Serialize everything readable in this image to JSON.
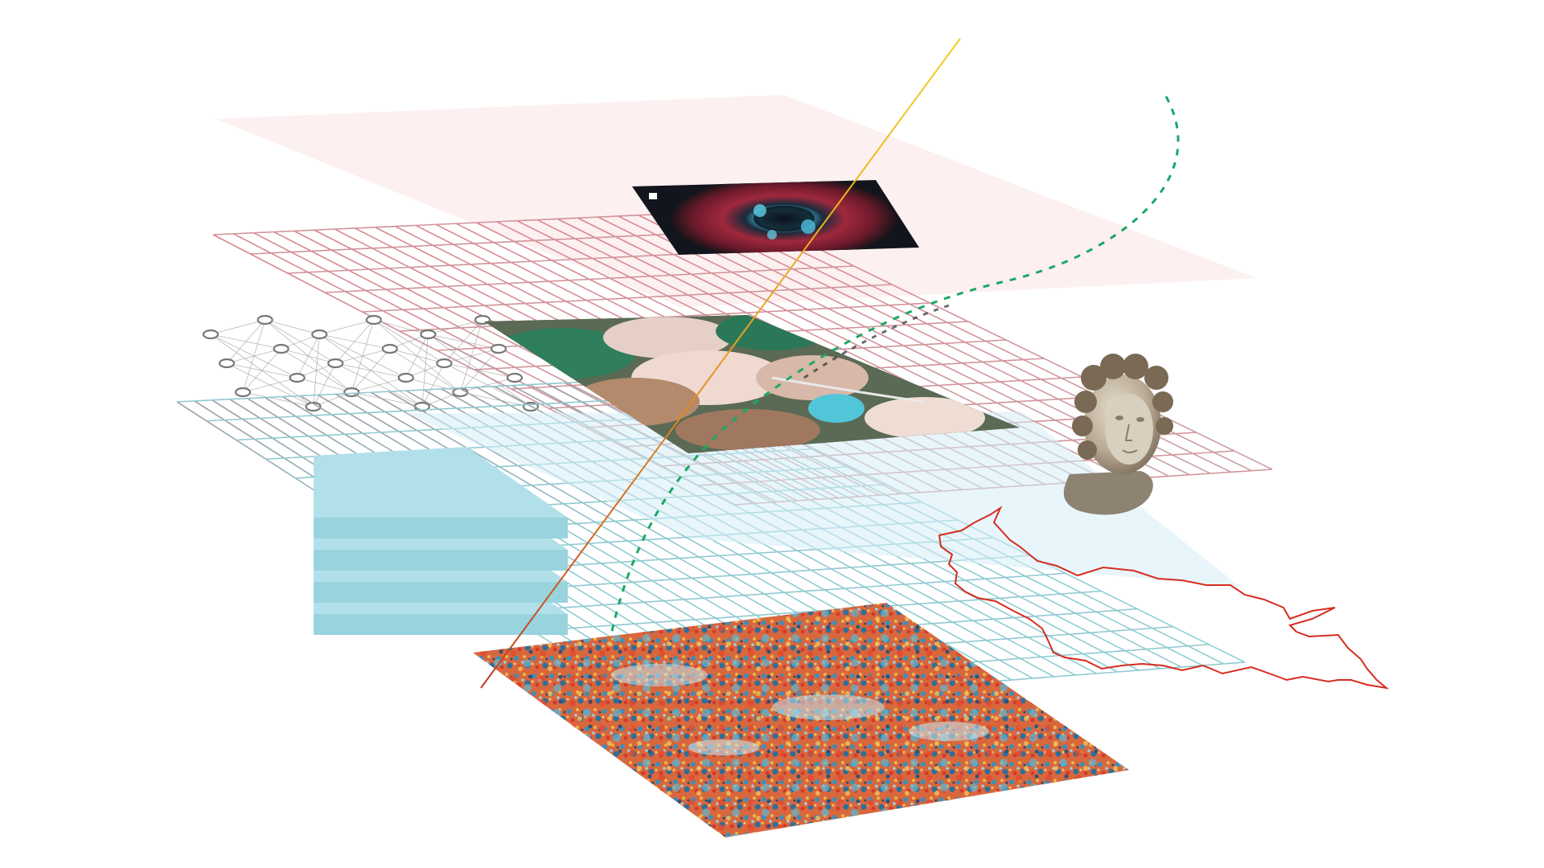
{
  "colors": {
    "background": "#ffffff",
    "top_plane": "#fdecec",
    "grid_red": "#d98a91",
    "grid_gray": "#a8a8b0",
    "grid_teal": "#8ccfd2",
    "translucent_plane": "#d8eef7",
    "stack_block": "#a8dce6",
    "yellow_line": "#e8c21c",
    "red_line": "#c2371f",
    "green_dash": "#1aa866",
    "dark_dash": "#2a2f3a",
    "border_outline": "#d62b1e",
    "neural_node": "#777777",
    "neural_edge": "#9a9a9a"
  },
  "icons": {
    "microscopy": "microscopy-image-icon",
    "satellite": "satellite-fields-icon",
    "heatmap": "spectral-heatmap-icon",
    "bust": "classical-bust-icon",
    "network": "neural-network-icon",
    "border": "map-border-icon",
    "stack": "data-stack-icon"
  },
  "neural_network": {
    "layers": [
      3,
      4,
      3,
      4,
      3,
      4
    ]
  },
  "data_stack": {
    "layer_count": 4
  }
}
